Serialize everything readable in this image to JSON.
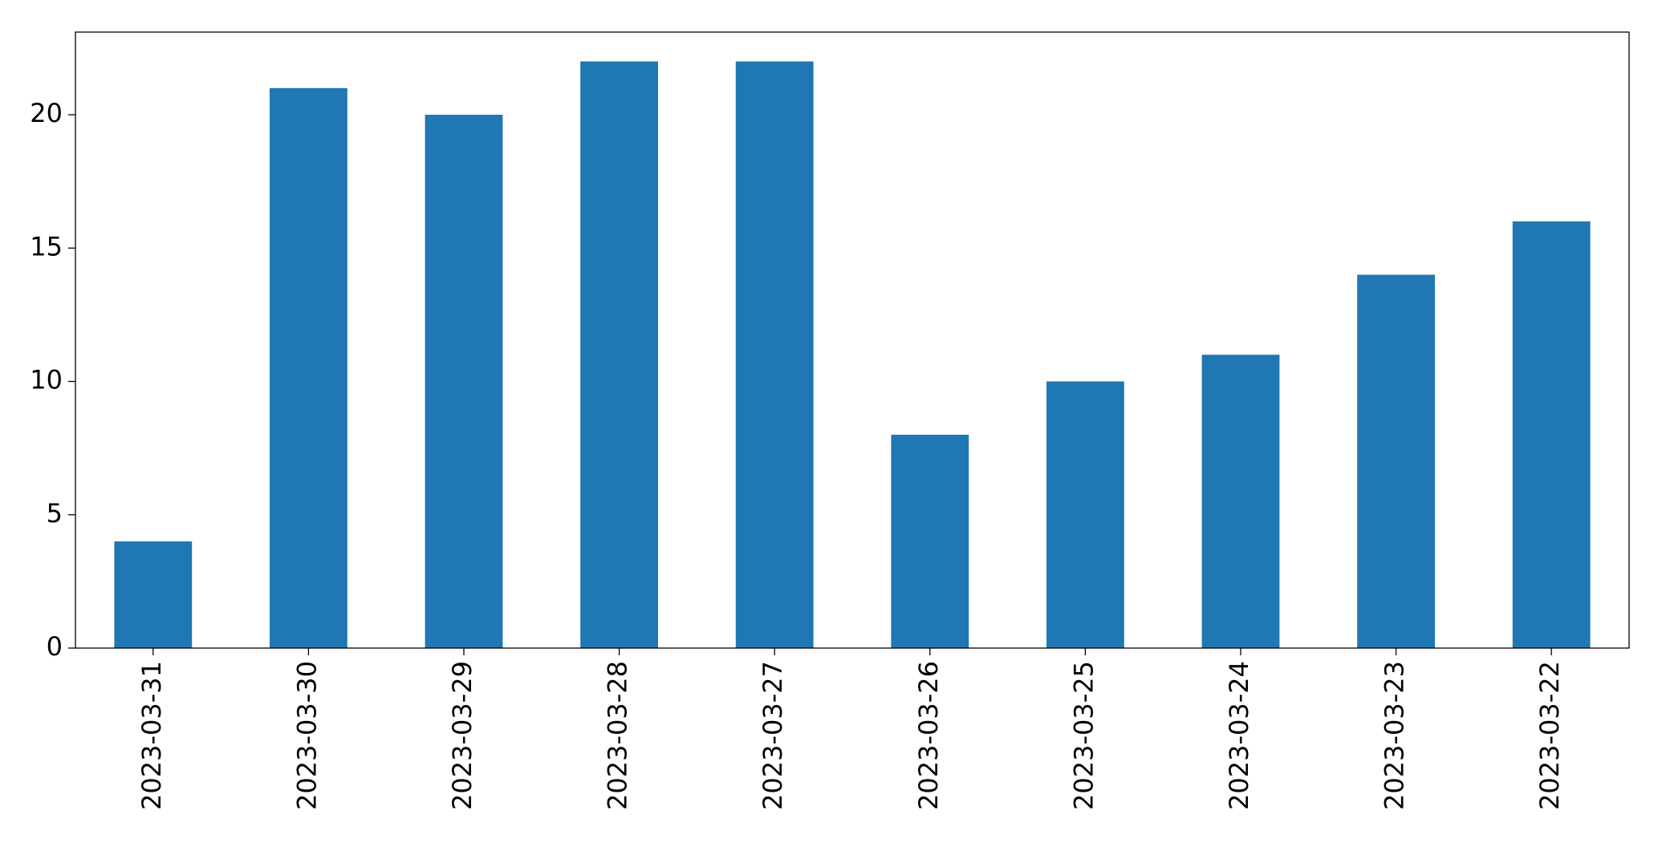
{
  "chart_data": {
    "type": "bar",
    "categories": [
      "2023-03-31",
      "2023-03-30",
      "2023-03-29",
      "2023-03-28",
      "2023-03-27",
      "2023-03-26",
      "2023-03-25",
      "2023-03-24",
      "2023-03-23",
      "2023-03-22"
    ],
    "values": [
      4,
      21,
      20,
      22,
      22,
      8,
      10,
      11,
      14,
      16
    ],
    "color": "#1f77b4",
    "ylim": [
      0,
      23.1
    ],
    "yticks": [
      0,
      5,
      10,
      15,
      20
    ],
    "grid": false
  }
}
